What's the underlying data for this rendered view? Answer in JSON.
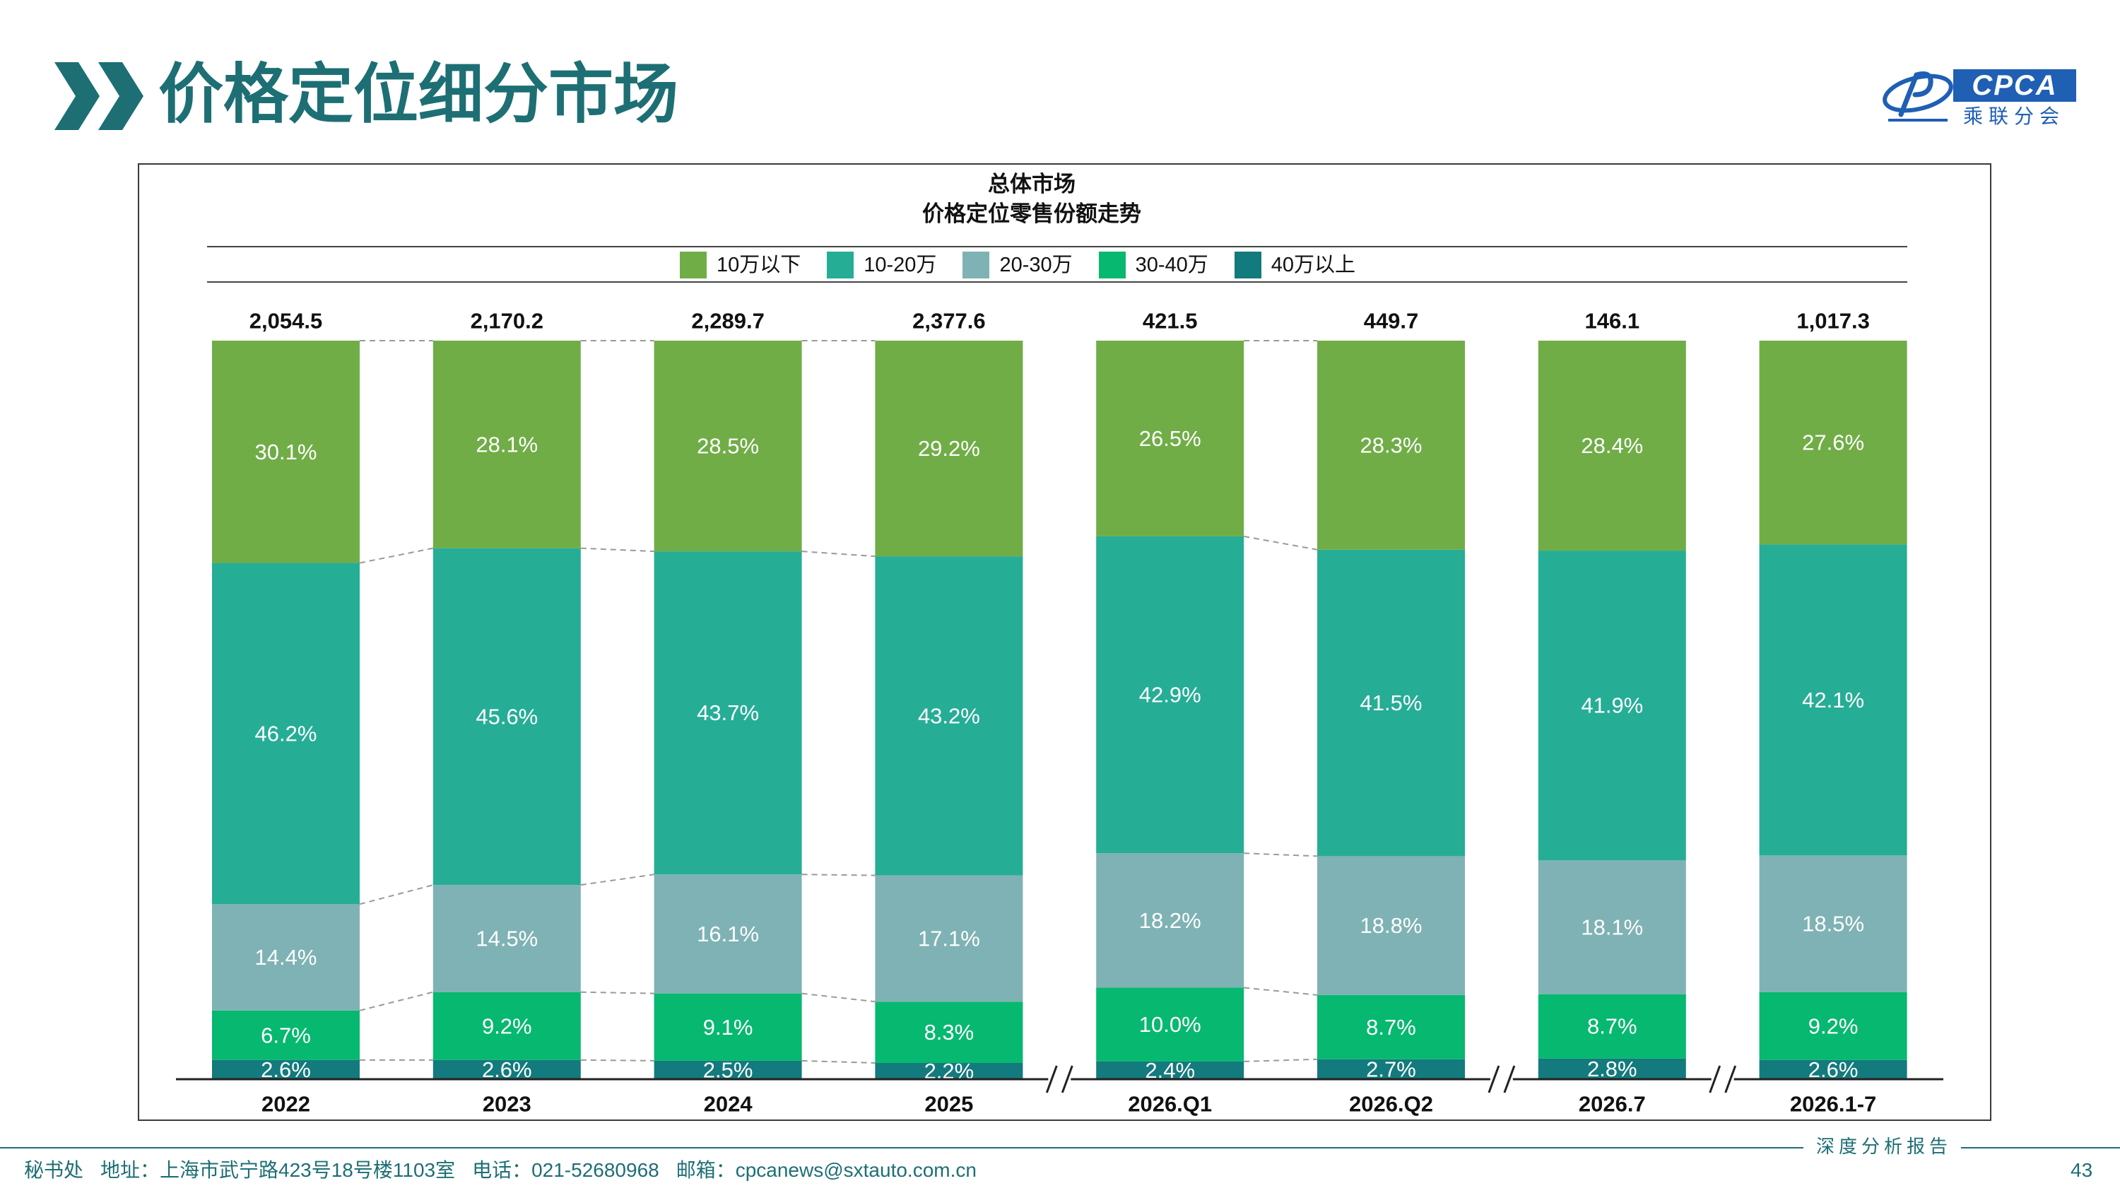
{
  "header": {
    "title": "价格定位细分市场",
    "icon": "double-chevron-right-icon"
  },
  "logo": {
    "text": "CPCA",
    "cn_name": "乘联分会"
  },
  "colors": {
    "brand": "#1d6f74",
    "logo_blue": "#1f5fb4"
  },
  "chart_data": {
    "type": "bar",
    "stacked": true,
    "normalized": true,
    "title": "总体市场",
    "subtitle": "价格定位零售份额走势",
    "unit": "%",
    "legend": "top",
    "categories": [
      "2022",
      "2023",
      "2024",
      "2025",
      "2026.Q1",
      "2026.Q2",
      "2026.7",
      "2026.1-7"
    ],
    "totals": [
      "2,054.5",
      "2,170.2",
      "2,289.7",
      "2,377.6",
      "421.5",
      "449.7",
      "146.1",
      "1,017.3"
    ],
    "series": [
      {
        "name": "10万以下",
        "color": "#70ad47",
        "values": [
          30.1,
          28.1,
          28.5,
          29.2,
          26.5,
          28.3,
          28.4,
          27.6
        ]
      },
      {
        "name": "10-20万",
        "color": "#26ad96",
        "values": [
          46.2,
          45.6,
          43.7,
          43.2,
          42.9,
          41.5,
          41.9,
          42.1
        ]
      },
      {
        "name": "20-30万",
        "color": "#7fb2b4",
        "values": [
          14.4,
          14.5,
          16.1,
          17.1,
          18.2,
          18.8,
          18.1,
          18.5
        ]
      },
      {
        "name": "30-40万",
        "color": "#07b870",
        "values": [
          6.7,
          9.2,
          9.1,
          8.3,
          10.0,
          8.7,
          8.7,
          9.2
        ]
      },
      {
        "name": "40万以上",
        "color": "#137a7d",
        "values": [
          2.6,
          2.6,
          2.5,
          2.2,
          2.4,
          2.7,
          2.8,
          2.6
        ]
      }
    ],
    "axis_breaks_after": [
      "2025",
      "2026.Q2",
      "2026.7"
    ]
  },
  "footer": {
    "secretariat": "秘书处",
    "address": "地址：上海市武宁路423号18号楼1103室",
    "phone": "电话：021-52680968",
    "email": "邮箱：cpcanews@sxtauto.com.cn",
    "report_tag": "深度分析报告",
    "page_number": "43"
  }
}
